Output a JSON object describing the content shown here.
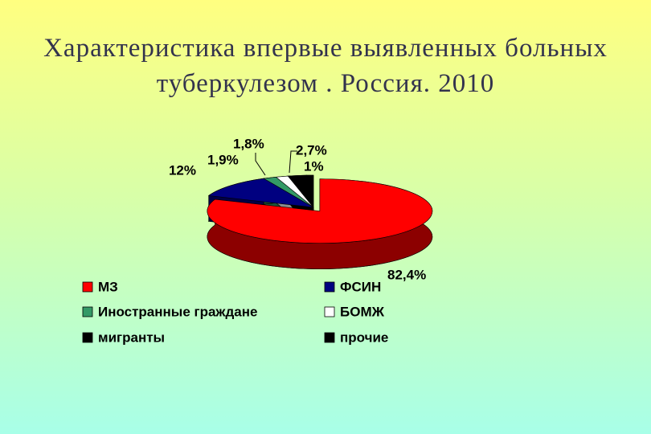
{
  "chart_data": {
    "type": "pie3d",
    "title": "Характеристика впервые выявленных больных туберкулезом . Россия. 2010",
    "categories": [
      "МЗ",
      "ФСИН",
      "Иностранные граждане",
      "БОМЖ",
      "мигранты",
      "прочие"
    ],
    "values": [
      82.4,
      12,
      1.9,
      1.8,
      2.7,
      1
    ],
    "value_labels": [
      "82,4%",
      "12%",
      "1,9%",
      "1,8%",
      "2,7%",
      "1%"
    ],
    "colors": [
      "#ff0000",
      "#000080",
      "#339966",
      "#ffffff",
      "#000000",
      "#000000"
    ],
    "legend": "bottom"
  }
}
